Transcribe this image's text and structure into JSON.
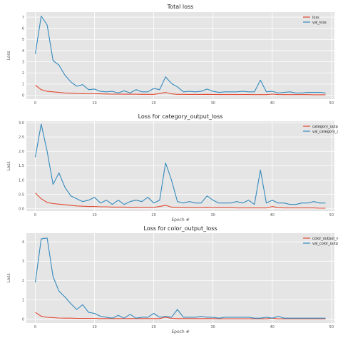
{
  "colors": {
    "background": "#ffffff",
    "axes_bg": "#e5e5e5",
    "grid": "#ffffff",
    "train_series": "#e24a33",
    "val_series": "#348abd"
  },
  "chart_data": [
    {
      "type": "line",
      "title": "Total loss",
      "xlabel": "",
      "ylabel": "Loss",
      "xlim": [
        -1.5,
        50.5
      ],
      "ylim": [
        -0.35,
        7.45
      ],
      "xticks": [
        0,
        10,
        20,
        30,
        40,
        50
      ],
      "yticks": [
        0,
        1,
        2,
        3,
        4,
        5,
        6,
        7
      ],
      "ytick_labels": [
        "0",
        "1",
        "2",
        "3",
        "4",
        "5",
        "6",
        "7"
      ],
      "grid": true,
      "legend": "top-right",
      "x": [
        0,
        1,
        2,
        3,
        4,
        5,
        6,
        7,
        8,
        9,
        10,
        11,
        12,
        13,
        14,
        15,
        16,
        17,
        18,
        19,
        20,
        21,
        22,
        23,
        24,
        25,
        26,
        27,
        28,
        29,
        30,
        31,
        32,
        33,
        34,
        35,
        36,
        37,
        38,
        39,
        40,
        41,
        42,
        43,
        44,
        45,
        46,
        47,
        48,
        49
      ],
      "series": [
        {
          "name": "loss",
          "color": "#e24a33",
          "values": [
            0.9,
            0.5,
            0.35,
            0.3,
            0.25,
            0.2,
            0.18,
            0.15,
            0.14,
            0.13,
            0.13,
            0.12,
            0.11,
            0.1,
            0.1,
            0.09,
            0.09,
            0.09,
            0.08,
            0.08,
            0.08,
            0.15,
            0.25,
            0.12,
            0.08,
            0.08,
            0.07,
            0.07,
            0.07,
            0.08,
            0.07,
            0.06,
            0.06,
            0.06,
            0.06,
            0.06,
            0.06,
            0.05,
            0.05,
            0.05,
            0.1,
            0.06,
            0.05,
            0.05,
            0.05,
            0.05,
            0.05,
            0.04,
            0.04,
            0.04
          ]
        },
        {
          "name": "val_loss",
          "color": "#348abd",
          "values": [
            3.7,
            7.1,
            6.3,
            3.1,
            2.7,
            1.8,
            1.2,
            0.8,
            0.95,
            0.5,
            0.55,
            0.35,
            0.3,
            0.35,
            0.2,
            0.4,
            0.2,
            0.5,
            0.3,
            0.3,
            0.6,
            0.5,
            1.65,
            1.05,
            0.75,
            0.3,
            0.35,
            0.3,
            0.35,
            0.55,
            0.35,
            0.25,
            0.3,
            0.3,
            0.3,
            0.35,
            0.3,
            0.3,
            1.35,
            0.3,
            0.35,
            0.2,
            0.25,
            0.3,
            0.2,
            0.2,
            0.25,
            0.25,
            0.25,
            0.2
          ]
        }
      ]
    },
    {
      "type": "line",
      "title": "Loss for category_output_loss",
      "xlabel": "Epoch #",
      "ylabel": "Loss",
      "xlim": [
        -1.5,
        50.5
      ],
      "ylim": [
        -0.08,
        3.05
      ],
      "xticks": [
        0,
        10,
        20,
        30,
        40,
        50
      ],
      "yticks": [
        0,
        0.5,
        1.0,
        1.5,
        2.0,
        2.5,
        3.0
      ],
      "ytick_labels": [
        "0.0",
        "0.5",
        "1.0",
        "1.5",
        "2.0",
        "2.5",
        "3.0"
      ],
      "grid": true,
      "legend": "top-right",
      "x": [
        0,
        1,
        2,
        3,
        4,
        5,
        6,
        7,
        8,
        9,
        10,
        11,
        12,
        13,
        14,
        15,
        16,
        17,
        18,
        19,
        20,
        21,
        22,
        23,
        24,
        25,
        26,
        27,
        28,
        29,
        30,
        31,
        32,
        33,
        34,
        35,
        36,
        37,
        38,
        39,
        40,
        41,
        42,
        43,
        44,
        45,
        46,
        47,
        48,
        49
      ],
      "series": [
        {
          "name": "category_output_loss",
          "color": "#e24a33",
          "values": [
            0.55,
            0.35,
            0.22,
            0.18,
            0.16,
            0.14,
            0.12,
            0.1,
            0.09,
            0.08,
            0.08,
            0.07,
            0.07,
            0.06,
            0.06,
            0.06,
            0.05,
            0.05,
            0.05,
            0.05,
            0.05,
            0.08,
            0.12,
            0.06,
            0.05,
            0.05,
            0.04,
            0.04,
            0.04,
            0.05,
            0.04,
            0.04,
            0.04,
            0.04,
            0.03,
            0.03,
            0.03,
            0.03,
            0.03,
            0.03,
            0.08,
            0.04,
            0.03,
            0.03,
            0.03,
            0.03,
            0.03,
            0.03,
            0.02,
            0.02
          ]
        },
        {
          "name": "val_category_output_loss",
          "color": "#348abd",
          "values": [
            1.8,
            2.95,
            2.0,
            0.85,
            1.25,
            0.75,
            0.45,
            0.35,
            0.25,
            0.3,
            0.4,
            0.2,
            0.3,
            0.15,
            0.3,
            0.15,
            0.25,
            0.3,
            0.25,
            0.4,
            0.2,
            0.3,
            1.6,
            1.0,
            0.25,
            0.2,
            0.25,
            0.2,
            0.2,
            0.45,
            0.3,
            0.2,
            0.2,
            0.2,
            0.25,
            0.2,
            0.3,
            0.15,
            1.35,
            0.2,
            0.3,
            0.2,
            0.2,
            0.15,
            0.15,
            0.2,
            0.2,
            0.25,
            0.2,
            0.2
          ]
        }
      ]
    },
    {
      "type": "line",
      "title": "Loss for color_output_loss",
      "xlabel": "Epoch #",
      "ylabel": "Loss",
      "xlim": [
        -1.5,
        50.5
      ],
      "ylim": [
        -0.2,
        4.45
      ],
      "xticks": [
        0,
        10,
        20,
        30,
        40,
        50
      ],
      "yticks": [
        0,
        1,
        2,
        3,
        4
      ],
      "ytick_labels": [
        "0",
        "1",
        "2",
        "3",
        "4"
      ],
      "grid": true,
      "legend": "top-right",
      "x": [
        0,
        1,
        2,
        3,
        4,
        5,
        6,
        7,
        8,
        9,
        10,
        11,
        12,
        13,
        14,
        15,
        16,
        17,
        18,
        19,
        20,
        21,
        22,
        23,
        24,
        25,
        26,
        27,
        28,
        29,
        30,
        31,
        32,
        33,
        34,
        35,
        36,
        37,
        38,
        39,
        40,
        41,
        42,
        43,
        44,
        45,
        46,
        47,
        48,
        49
      ],
      "series": [
        {
          "name": "color_output_loss",
          "color": "#e24a33",
          "values": [
            0.35,
            0.15,
            0.1,
            0.08,
            0.06,
            0.05,
            0.05,
            0.04,
            0.04,
            0.04,
            0.04,
            0.03,
            0.03,
            0.03,
            0.03,
            0.03,
            0.03,
            0.03,
            0.03,
            0.03,
            0.03,
            0.03,
            0.1,
            0.04,
            0.03,
            0.03,
            0.03,
            0.03,
            0.03,
            0.03,
            0.03,
            0.02,
            0.02,
            0.02,
            0.02,
            0.02,
            0.02,
            0.02,
            0.02,
            0.02,
            0.05,
            0.02,
            0.02,
            0.02,
            0.02,
            0.02,
            0.02,
            0.02,
            0.02,
            0.02
          ]
        },
        {
          "name": "val_color_output_loss",
          "color": "#348abd",
          "values": [
            1.9,
            4.15,
            4.2,
            2.2,
            1.45,
            1.15,
            0.8,
            0.5,
            0.75,
            0.35,
            0.3,
            0.15,
            0.1,
            0.05,
            0.2,
            0.05,
            0.25,
            0.05,
            0.1,
            0.1,
            0.3,
            0.1,
            0.15,
            0.1,
            0.5,
            0.1,
            0.1,
            0.1,
            0.15,
            0.1,
            0.1,
            0.05,
            0.1,
            0.1,
            0.1,
            0.1,
            0.1,
            0.05,
            0.05,
            0.1,
            0.05,
            0.15,
            0.05,
            0.05,
            0.05,
            0.05,
            0.05,
            0.05,
            0.05,
            0.05
          ]
        }
      ]
    }
  ]
}
